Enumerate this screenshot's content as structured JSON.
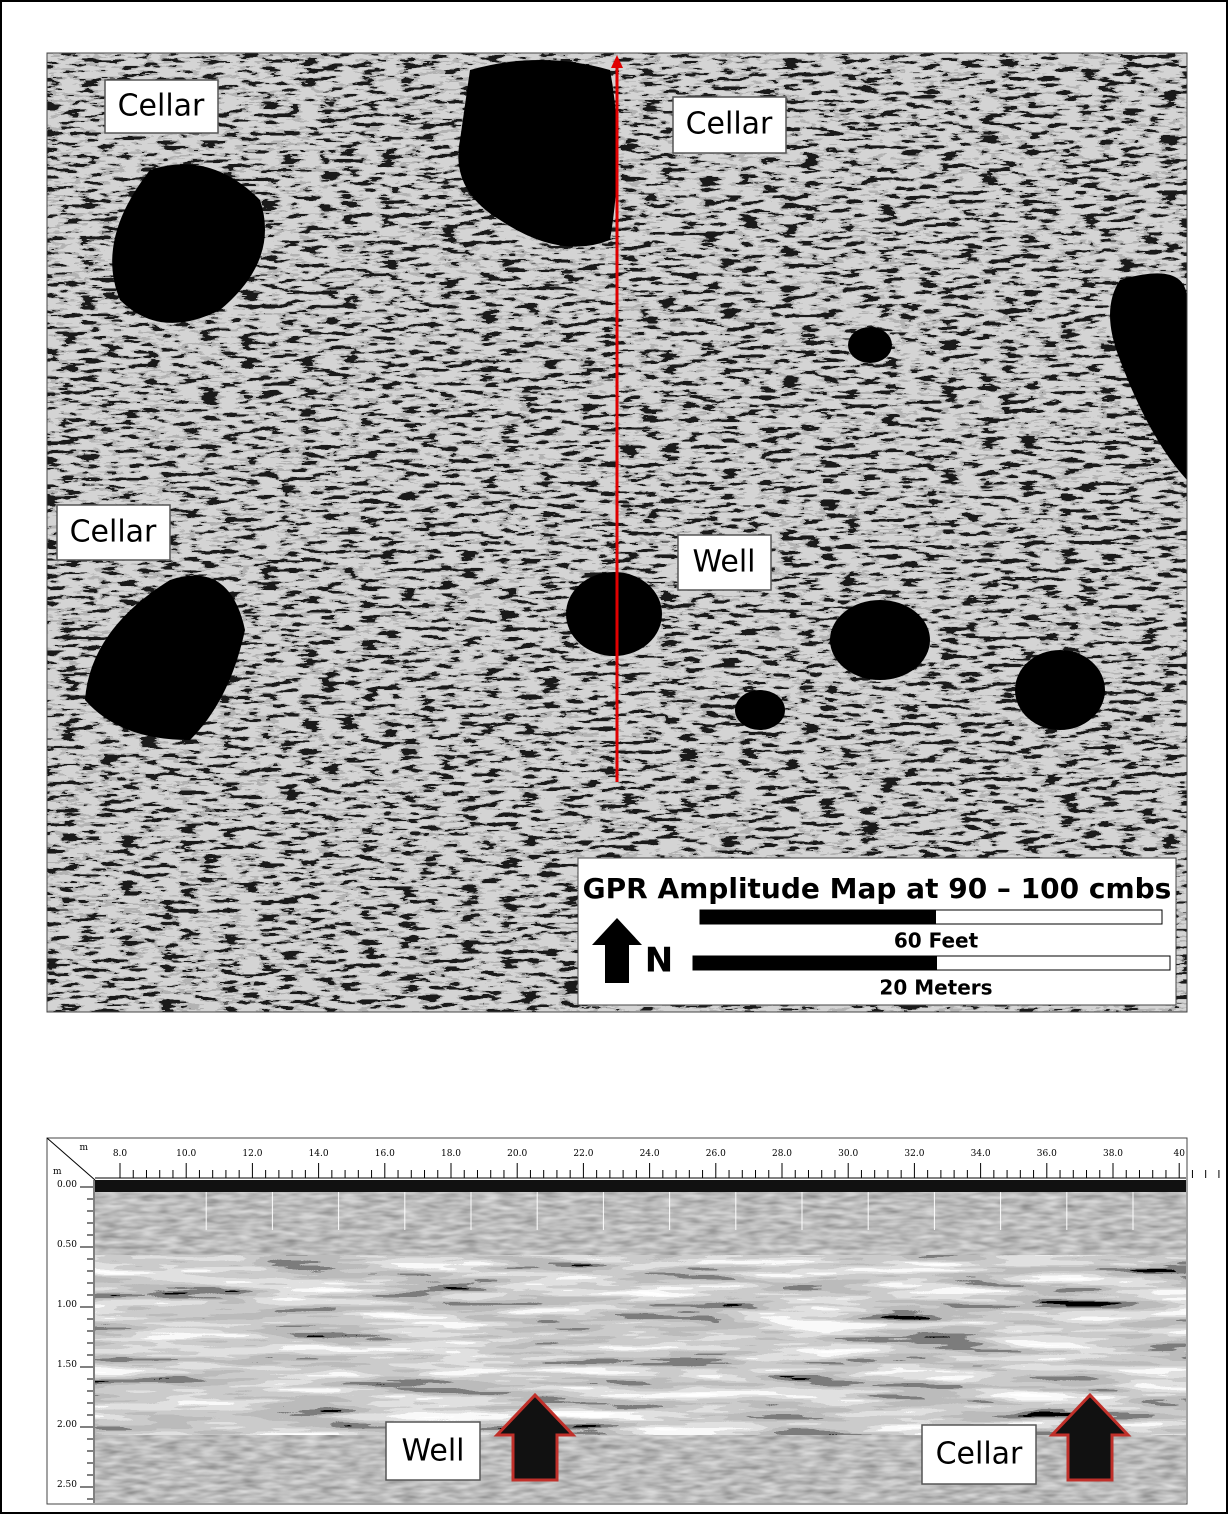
{
  "map": {
    "labels": [
      "Cellar",
      "Cellar",
      "Cellar",
      "Well"
    ],
    "legend": {
      "title": "GPR Amplitude Map at 90 – 100 cmbs",
      "north": "N",
      "scale_feet": "60 Feet",
      "scale_meters": "20 Meters"
    }
  },
  "radargram": {
    "x_unit": "m",
    "y_unit": "m",
    "x_ticks": [
      "8.0",
      "10.0",
      "12.0",
      "14.0",
      "16.0",
      "18.0",
      "20.0",
      "22.0",
      "24.0",
      "26.0",
      "28.0",
      "30.0",
      "32.0",
      "34.0",
      "36.0",
      "38.0",
      "40"
    ],
    "y_ticks": [
      "0.00",
      "0.50",
      "1.00",
      "1.50",
      "2.00",
      "2.50"
    ],
    "labels": [
      "Well",
      "Cellar"
    ]
  }
}
